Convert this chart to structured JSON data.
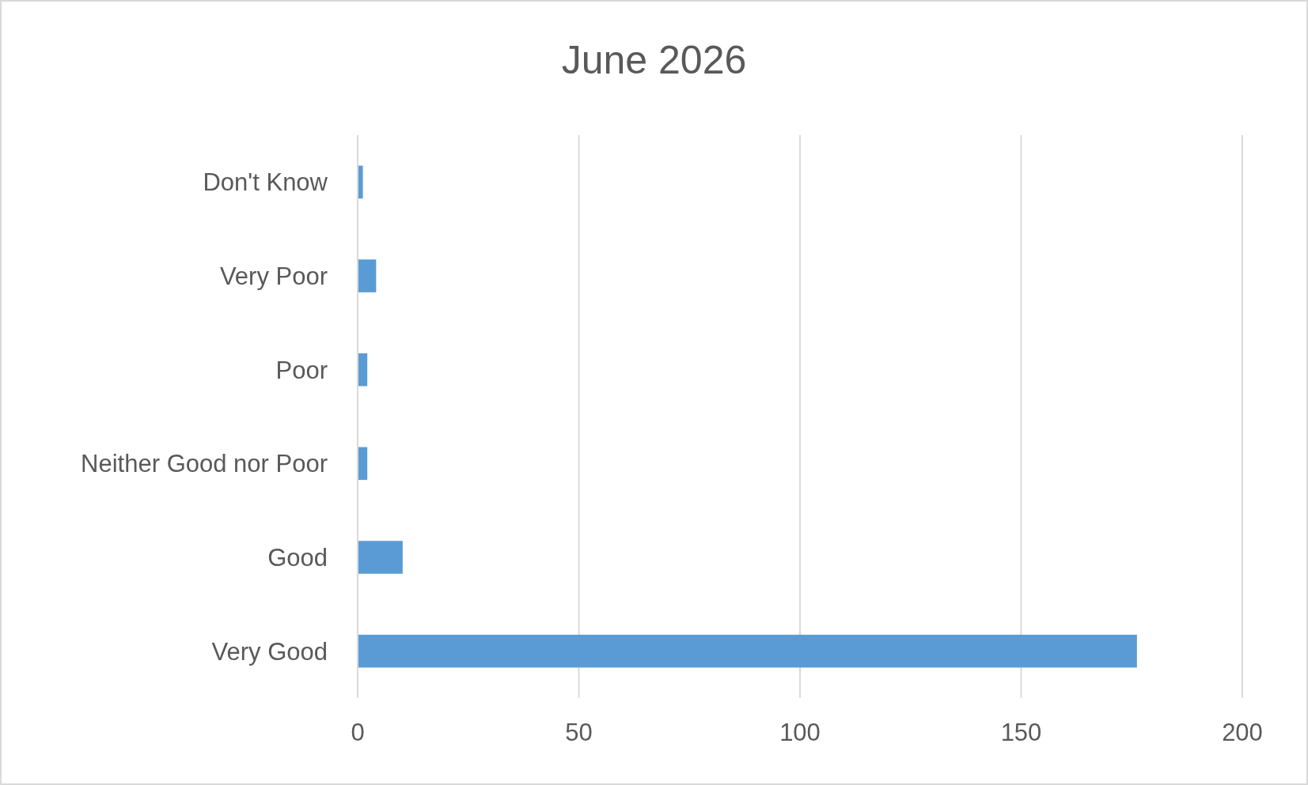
{
  "chart_data": {
    "type": "bar",
    "orientation": "horizontal",
    "title": "June 2026",
    "categories": [
      "Don't Know",
      "Very Poor",
      "Poor",
      "Neither Good nor Poor",
      "Good",
      "Very Good"
    ],
    "values": [
      1,
      4,
      2,
      2,
      10,
      176
    ],
    "color": "#5b9bd5",
    "xlim": [
      0,
      200
    ],
    "xticks": [
      0,
      50,
      100,
      150,
      200
    ],
    "grid": "x"
  }
}
